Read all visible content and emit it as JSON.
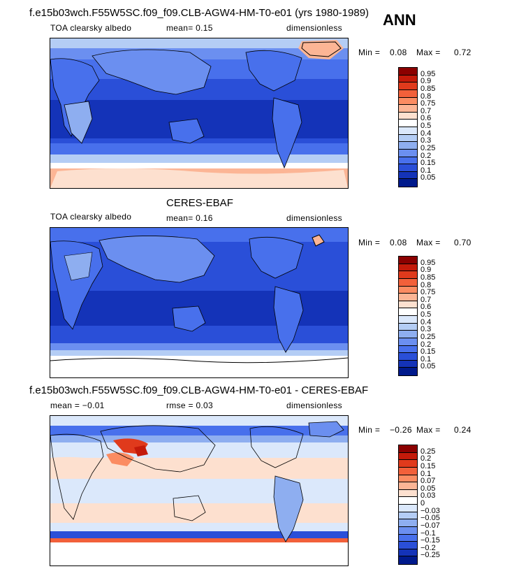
{
  "season": "ANN",
  "panels": [
    {
      "title": "f.e15b03wch.F55W5SC.f09_f09.CLB-AGW4-HM-T0-e01 (yrs 1980-1989)",
      "left_label": "TOA clearsky albedo",
      "center_label": "mean=   0.15",
      "right_label": "dimensionless",
      "min_label": "Min =",
      "min_value": "0.08",
      "max_label": "Max =",
      "max_value": "0.72",
      "colorbar": [
        "0.95",
        "0.9",
        "0.85",
        "0.8",
        "0.75",
        "0.7",
        "0.6",
        "0.5",
        "0.4",
        "0.3",
        "0.25",
        "0.2",
        "0.15",
        "0.1",
        "0.05"
      ],
      "colors": [
        "#8b0000",
        "#c41a0a",
        "#e03a1c",
        "#f2603a",
        "#fb8c62",
        "#fcb595",
        "#fde0cf",
        "#ffffff",
        "#dbe8fb",
        "#b4cdf5",
        "#8eaef0",
        "#6b8ff0",
        "#4870ec",
        "#2a4fd8",
        "#1433b8",
        "#001a8c"
      ]
    },
    {
      "title": "CERES-EBAF",
      "left_label": "TOA clearsky albedo",
      "center_label": "mean=   0.16",
      "right_label": "dimensionless",
      "min_label": "Min =",
      "min_value": "0.08",
      "max_label": "Max =",
      "max_value": "0.70",
      "colorbar": [
        "0.95",
        "0.9",
        "0.85",
        "0.8",
        "0.75",
        "0.7",
        "0.6",
        "0.5",
        "0.4",
        "0.3",
        "0.25",
        "0.2",
        "0.15",
        "0.1",
        "0.05"
      ],
      "colors": [
        "#8b0000",
        "#c41a0a",
        "#e03a1c",
        "#f2603a",
        "#fb8c62",
        "#fcb595",
        "#fde0cf",
        "#ffffff",
        "#dbe8fb",
        "#b4cdf5",
        "#8eaef0",
        "#6b8ff0",
        "#4870ec",
        "#2a4fd8",
        "#1433b8",
        "#001a8c"
      ]
    },
    {
      "title": "f.e15b03wch.F55W5SC.f09_f09.CLB-AGW4-HM-T0-e01 - CERES-EBAF",
      "left_label": "mean =  −0.01",
      "center_label": "rmse =    0.03",
      "right_label": "dimensionless",
      "min_label": "Min =",
      "min_value": "−0.26",
      "max_label": "Max =",
      "max_value": "0.24",
      "colorbar": [
        "0.25",
        "0.2",
        "0.15",
        "0.1",
        "0.07",
        "0.05",
        "0.03",
        "0",
        "−0.03",
        "−0.05",
        "−0.07",
        "−0.1",
        "−0.15",
        "−0.2",
        "−0.25"
      ],
      "colors": [
        "#8b0000",
        "#c41a0a",
        "#e03a1c",
        "#f2603a",
        "#fb8c62",
        "#fcb595",
        "#fde0cf",
        "#ffffff",
        "#dbe8fb",
        "#b4cdf5",
        "#8eaef0",
        "#6b8ff0",
        "#4870ec",
        "#2a4fd8",
        "#1433b8",
        "#001a8c"
      ]
    }
  ]
}
